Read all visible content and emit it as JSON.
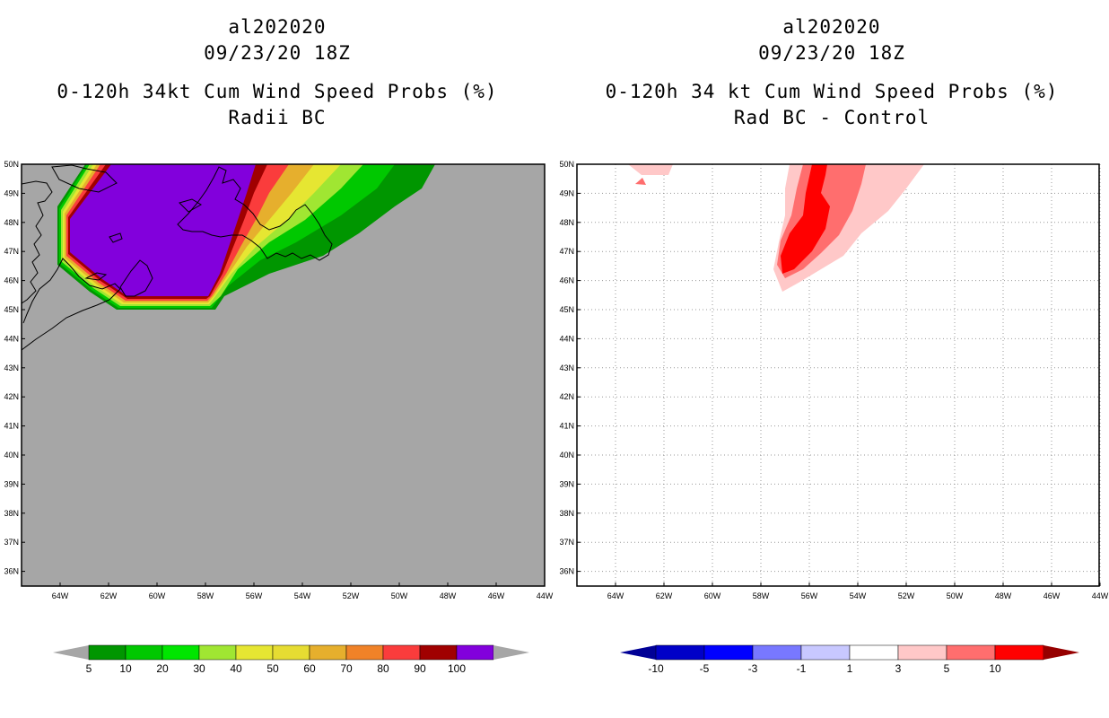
{
  "left_panel": {
    "storm_id": "al202020",
    "datetime": "09/23/20 18Z",
    "title": "0-120h 34kt Cum Wind Speed Probs (%)",
    "subtitle": "Radii BC",
    "colorbar": {
      "labels": [
        "5",
        "10",
        "20",
        "30",
        "40",
        "50",
        "60",
        "70",
        "80",
        "90",
        "100"
      ],
      "colors": [
        "#009600",
        "#00c800",
        "#00e600",
        "#a0e632",
        "#e6e632",
        "#e6dc32",
        "#e6af2d",
        "#f08228",
        "#fa3c3c",
        "#a00000",
        "#8200dc"
      ],
      "under_color": "#a6a6a6",
      "over_color": "#a6a6a6"
    }
  },
  "right_panel": {
    "storm_id": "al202020",
    "datetime": "09/23/20 18Z",
    "title": "0-120h 34 kt Cum Wind Speed Probs (%)",
    "subtitle": "Rad BC - Control",
    "colorbar": {
      "labels": [
        "-10",
        "-5",
        "-3",
        "-1",
        "1",
        "3",
        "5",
        "10"
      ],
      "colors": [
        "#0000c8",
        "#0000ff",
        "#7878ff",
        "#c8c8ff",
        "#ffffff",
        "#ffc8c8",
        "#ff6e6e",
        "#ff0000"
      ],
      "under_color": "#000096",
      "over_color": "#960000"
    }
  },
  "map": {
    "lat_labels": [
      "50N",
      "49N",
      "48N",
      "47N",
      "46N",
      "45N",
      "44N",
      "43N",
      "42N",
      "41N",
      "40N",
      "39N",
      "38N",
      "37N",
      "36N"
    ],
    "lon_labels": [
      "64W",
      "62W",
      "60W",
      "58W",
      "56W",
      "54W",
      "52W",
      "50W",
      "48W",
      "46W",
      "44W"
    ],
    "ocean_color_left": "#a6a6a6",
    "land_outline_color": "#000000"
  }
}
